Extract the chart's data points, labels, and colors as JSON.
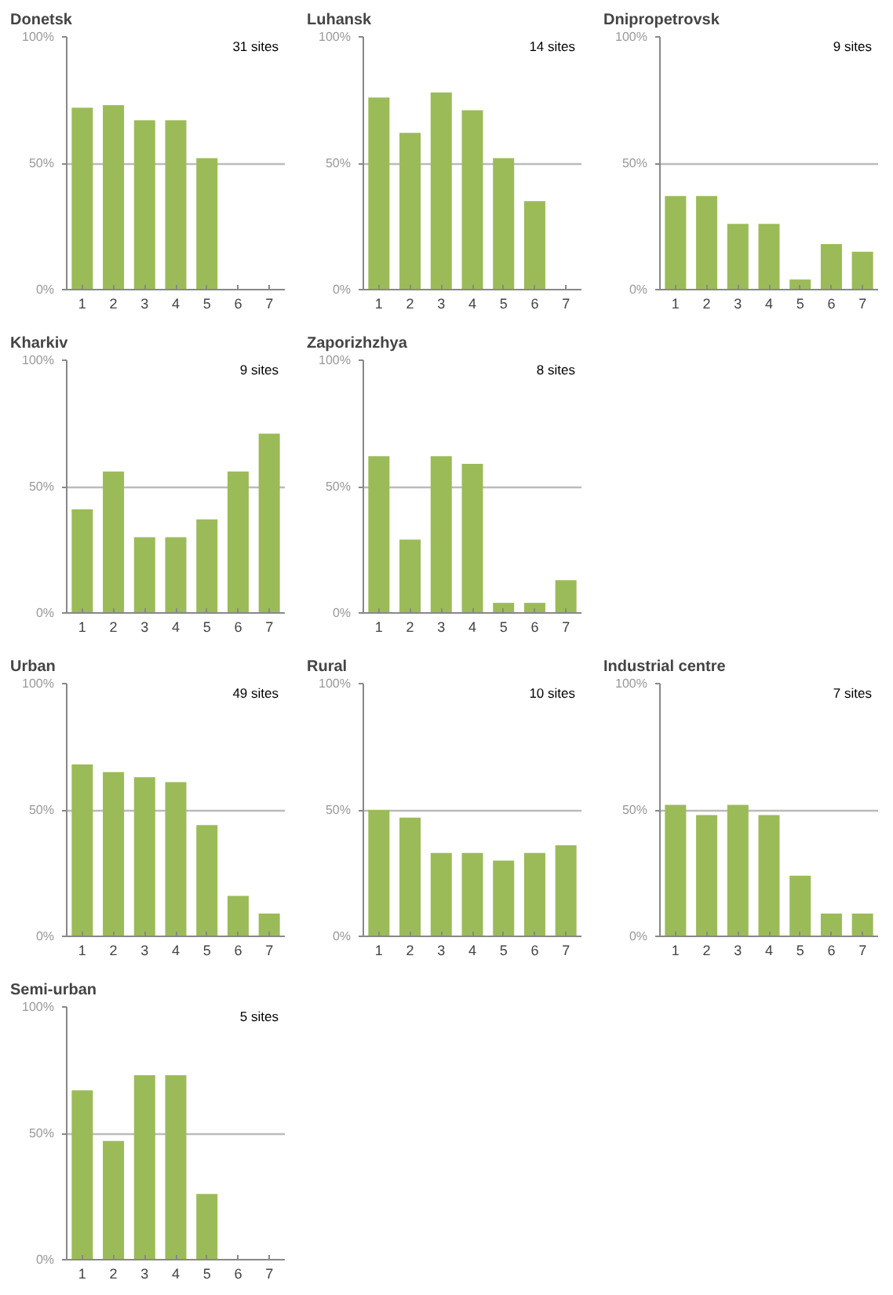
{
  "chart_data": [
    {
      "type": "bar",
      "title": "Donetsk",
      "categories": [
        "1",
        "2",
        "3",
        "4",
        "5",
        "6",
        "7"
      ],
      "values": [
        72,
        73,
        67,
        67,
        52,
        null,
        null
      ],
      "color": "#9bbb59",
      "ylim": [
        0,
        100
      ],
      "yticks": [
        {
          "value": 0,
          "label": "0%"
        },
        {
          "value": 50,
          "label": "50%"
        },
        {
          "value": 100,
          "label": "100%"
        }
      ],
      "grid": "y",
      "annotations": [
        "31 sites"
      ]
    },
    {
      "type": "bar",
      "title": "Luhansk",
      "categories": [
        "1",
        "2",
        "3",
        "4",
        "5",
        "6",
        "7"
      ],
      "values": [
        76,
        62,
        78,
        71,
        52,
        35,
        null
      ],
      "color": "#9bbb59",
      "ylim": [
        0,
        100
      ],
      "yticks": [
        {
          "value": 0,
          "label": "0%"
        },
        {
          "value": 50,
          "label": "50%"
        },
        {
          "value": 100,
          "label": "100%"
        }
      ],
      "grid": "y",
      "annotations": [
        "14 sites"
      ]
    },
    {
      "type": "bar",
      "title": "Dnipropetrovsk",
      "categories": [
        "1",
        "2",
        "3",
        "4",
        "5",
        "6",
        "7"
      ],
      "values": [
        37,
        37,
        26,
        26,
        4,
        18,
        15
      ],
      "color": "#9bbb59",
      "ylim": [
        0,
        100
      ],
      "yticks": [
        {
          "value": 0,
          "label": "0%"
        },
        {
          "value": 50,
          "label": "50%"
        },
        {
          "value": 100,
          "label": "100%"
        }
      ],
      "grid": "y",
      "annotations": [
        "9 sites"
      ]
    },
    {
      "type": "bar",
      "title": "Kharkiv",
      "categories": [
        "1",
        "2",
        "3",
        "4",
        "5",
        "6",
        "7"
      ],
      "values": [
        41,
        56,
        30,
        30,
        37,
        56,
        71
      ],
      "color": "#9bbb59",
      "ylim": [
        0,
        100
      ],
      "yticks": [
        {
          "value": 0,
          "label": "0%"
        },
        {
          "value": 50,
          "label": "50%"
        },
        {
          "value": 100,
          "label": "100%"
        }
      ],
      "grid": "y",
      "annotations": [
        "9 sites"
      ]
    },
    {
      "type": "bar",
      "title": "Zaporizhzhya",
      "categories": [
        "1",
        "2",
        "3",
        "4",
        "5",
        "6",
        "7"
      ],
      "values": [
        62,
        29,
        62,
        59,
        4,
        4,
        13
      ],
      "color": "#9bbb59",
      "ylim": [
        0,
        100
      ],
      "yticks": [
        {
          "value": 0,
          "label": "0%"
        },
        {
          "value": 50,
          "label": "50%"
        },
        {
          "value": 100,
          "label": "100%"
        }
      ],
      "grid": "y",
      "annotations": [
        "8 sites"
      ]
    },
    {
      "type": "bar",
      "title": "Urban",
      "categories": [
        "1",
        "2",
        "3",
        "4",
        "5",
        "6",
        "7"
      ],
      "values": [
        68,
        65,
        63,
        61,
        44,
        16,
        9
      ],
      "color": "#9bbb59",
      "ylim": [
        0,
        100
      ],
      "yticks": [
        {
          "value": 0,
          "label": "0%"
        },
        {
          "value": 50,
          "label": "50%"
        },
        {
          "value": 100,
          "label": "100%"
        }
      ],
      "grid": "y",
      "annotations": [
        "49 sites"
      ]
    },
    {
      "type": "bar",
      "title": "Rural",
      "categories": [
        "1",
        "2",
        "3",
        "4",
        "5",
        "6",
        "7"
      ],
      "values": [
        50,
        47,
        33,
        33,
        30,
        33,
        36
      ],
      "color": "#9bbb59",
      "ylim": [
        0,
        100
      ],
      "yticks": [
        {
          "value": 0,
          "label": "0%"
        },
        {
          "value": 50,
          "label": "50%"
        },
        {
          "value": 100,
          "label": "100%"
        }
      ],
      "grid": "y",
      "annotations": [
        "10 sites"
      ]
    },
    {
      "type": "bar",
      "title": "Industrial centre",
      "categories": [
        "1",
        "2",
        "3",
        "4",
        "5",
        "6",
        "7"
      ],
      "values": [
        52,
        48,
        52,
        48,
        24,
        9,
        9
      ],
      "color": "#9bbb59",
      "ylim": [
        0,
        100
      ],
      "yticks": [
        {
          "value": 0,
          "label": "0%"
        },
        {
          "value": 50,
          "label": "50%"
        },
        {
          "value": 100,
          "label": "100%"
        }
      ],
      "grid": "y",
      "annotations": [
        "7 sites"
      ]
    },
    {
      "type": "bar",
      "title": "Semi-urban",
      "categories": [
        "1",
        "2",
        "3",
        "4",
        "5",
        "6",
        "7"
      ],
      "values": [
        67,
        47,
        73,
        73,
        26,
        null,
        null
      ],
      "color": "#9bbb59",
      "ylim": [
        0,
        100
      ],
      "yticks": [
        {
          "value": 0,
          "label": "0%"
        },
        {
          "value": 50,
          "label": "50%"
        },
        {
          "value": 100,
          "label": "100%"
        }
      ],
      "grid": "y",
      "annotations": [
        "5 sites"
      ]
    }
  ]
}
